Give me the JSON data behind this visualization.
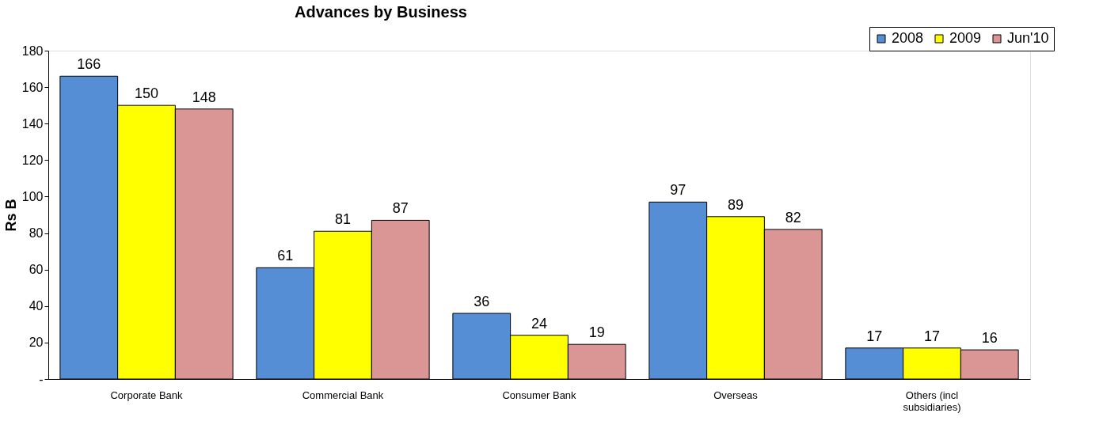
{
  "chart_data": {
    "type": "bar",
    "title": "Advances by Business",
    "ylabel": "Rs B",
    "categories": [
      "Corporate Bank",
      "Commercial Bank",
      "Consumer Bank",
      "Overseas",
      "Others (incl subsidiaries)"
    ],
    "series": [
      {
        "name": "2008",
        "color": "#558ed5",
        "values": [
          166,
          61,
          36,
          97,
          17
        ]
      },
      {
        "name": "2009",
        "color": "#ffff00",
        "values": [
          150,
          81,
          24,
          89,
          17
        ]
      },
      {
        "name": "Jun'10",
        "color": "#d99694",
        "values": [
          148,
          87,
          19,
          82,
          16
        ]
      }
    ],
    "ylim": [
      0,
      180
    ],
    "yticks": [
      {
        "value": 0,
        "label": "-"
      },
      20,
      40,
      60,
      80,
      100,
      120,
      140,
      160,
      180
    ],
    "data_labels": true,
    "grid": false,
    "legend": "top right"
  }
}
